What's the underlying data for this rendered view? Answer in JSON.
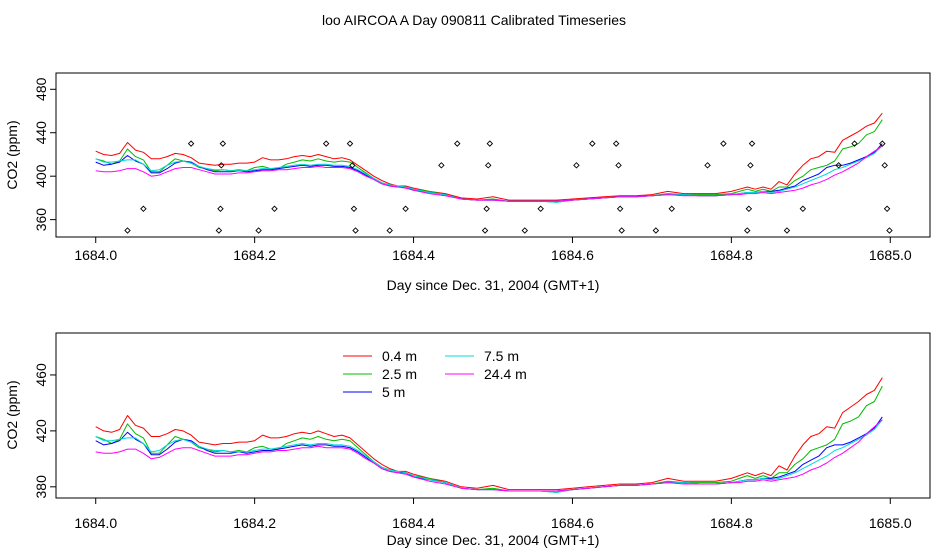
{
  "title": "loo AIRCOA A  Day 090811  Calibrated Timeseries",
  "colors": {
    "0.4 m": "#ff0000",
    "2.5 m": "#00bb00",
    "5 m": "#0000ff",
    "7.5 m": "#00d8d8",
    "24.4 m": "#ff00ff",
    "markers": "#000000"
  },
  "chart_data": [
    {
      "type": "line",
      "title": "",
      "xlabel": "Day since Dec. 31, 2004 (GMT+1)",
      "ylabel": "CO2 (ppm)",
      "xlim": [
        1683.95,
        1685.05
      ],
      "ylim": [
        344,
        495
      ],
      "xticks": [
        {
          "value": 1684.0,
          "label": "1684.0"
        },
        {
          "value": 1684.2,
          "label": "1684.2"
        },
        {
          "value": 1684.4,
          "label": "1684.4"
        },
        {
          "value": 1684.6,
          "label": "1684.6"
        },
        {
          "value": 1684.8,
          "label": "1684.8"
        },
        {
          "value": 1685.0,
          "label": "1685.0"
        }
      ],
      "yticks": [
        {
          "value": 360,
          "label": "360"
        },
        {
          "value": 400,
          "label": "400"
        },
        {
          "value": 440,
          "label": "440"
        },
        {
          "value": 480,
          "label": "480"
        }
      ],
      "legend": null,
      "series_source": "shared",
      "markers": {
        "shape": "diamond",
        "points": [
          [
            1684.04,
            350
          ],
          [
            1684.06,
            370
          ],
          [
            1684.12,
            430
          ],
          [
            1684.155,
            350
          ],
          [
            1684.157,
            370
          ],
          [
            1684.158,
            410
          ],
          [
            1684.16,
            430
          ],
          [
            1684.205,
            350
          ],
          [
            1684.225,
            370
          ],
          [
            1684.29,
            430
          ],
          [
            1684.32,
            430
          ],
          [
            1684.323,
            410
          ],
          [
            1684.325,
            370
          ],
          [
            1684.327,
            350
          ],
          [
            1684.37,
            350
          ],
          [
            1684.39,
            370
          ],
          [
            1684.435,
            410
          ],
          [
            1684.455,
            430
          ],
          [
            1684.49,
            350
          ],
          [
            1684.492,
            370
          ],
          [
            1684.494,
            410
          ],
          [
            1684.496,
            430
          ],
          [
            1684.54,
            350
          ],
          [
            1684.56,
            370
          ],
          [
            1684.605,
            410
          ],
          [
            1684.625,
            430
          ],
          [
            1684.655,
            430
          ],
          [
            1684.658,
            410
          ],
          [
            1684.66,
            370
          ],
          [
            1684.662,
            350
          ],
          [
            1684.705,
            350
          ],
          [
            1684.725,
            370
          ],
          [
            1684.77,
            410
          ],
          [
            1684.79,
            430
          ],
          [
            1684.82,
            350
          ],
          [
            1684.822,
            370
          ],
          [
            1684.824,
            410
          ],
          [
            1684.826,
            430
          ],
          [
            1684.87,
            350
          ],
          [
            1684.89,
            370
          ],
          [
            1684.935,
            410
          ],
          [
            1684.955,
            430
          ],
          [
            1684.99,
            430
          ],
          [
            1684.993,
            410
          ],
          [
            1684.996,
            370
          ],
          [
            1684.999,
            350
          ]
        ]
      }
    },
    {
      "type": "line",
      "title": "",
      "xlabel": "Day since Dec. 31, 2004 (GMT+1)",
      "ylabel": "CO2 (ppm)",
      "xlim": [
        1683.95,
        1685.05
      ],
      "ylim": [
        372,
        490
      ],
      "xticks": [
        {
          "value": 1684.0,
          "label": "1684.0"
        },
        {
          "value": 1684.2,
          "label": "1684.2"
        },
        {
          "value": 1684.4,
          "label": "1684.4"
        },
        {
          "value": 1684.6,
          "label": "1684.6"
        },
        {
          "value": 1684.8,
          "label": "1684.8"
        },
        {
          "value": 1685.0,
          "label": "1685.0"
        }
      ],
      "yticks": [
        {
          "value": 380,
          "label": "380"
        },
        {
          "value": 420,
          "label": "420"
        },
        {
          "value": 460,
          "label": "460"
        }
      ],
      "legend": {
        "placement": "top-left",
        "entries": [
          "0.4 m",
          "2.5 m",
          "5 m",
          "7.5 m",
          "24.4 m"
        ]
      },
      "series_source": "shared",
      "markers": null
    }
  ],
  "series": [
    {
      "name": "0.4 m",
      "color": "#ff0000",
      "x": [
        1684.0,
        1684.01,
        1684.02,
        1684.03,
        1684.04,
        1684.05,
        1684.06,
        1684.07,
        1684.08,
        1684.09,
        1684.1,
        1684.11,
        1684.12,
        1684.13,
        1684.14,
        1684.15,
        1684.16,
        1684.17,
        1684.18,
        1684.19,
        1684.2,
        1684.21,
        1684.22,
        1684.23,
        1684.24,
        1684.25,
        1684.26,
        1684.27,
        1684.28,
        1684.29,
        1684.3,
        1684.31,
        1684.32,
        1684.33,
        1684.34,
        1684.35,
        1684.36,
        1684.37,
        1684.38,
        1684.39,
        1684.4,
        1684.42,
        1684.44,
        1684.46,
        1684.48,
        1684.5,
        1684.52,
        1684.54,
        1684.56,
        1684.58,
        1684.6,
        1684.62,
        1684.64,
        1684.66,
        1684.68,
        1684.7,
        1684.72,
        1684.74,
        1684.76,
        1684.78,
        1684.8,
        1684.81,
        1684.82,
        1684.83,
        1684.84,
        1684.85,
        1684.86,
        1684.87,
        1684.88,
        1684.89,
        1684.9,
        1684.91,
        1684.92,
        1684.93,
        1684.94,
        1684.95,
        1684.96,
        1684.97,
        1684.98,
        1684.99
      ],
      "y": [
        423,
        420,
        419,
        421,
        431,
        424,
        422,
        416,
        416,
        418,
        421,
        420,
        417,
        412,
        411,
        410,
        411,
        411,
        412,
        412,
        413,
        417,
        415,
        415,
        416,
        418,
        419,
        418,
        420,
        418,
        416,
        417,
        415,
        410,
        405,
        400,
        396,
        393,
        391,
        391,
        389,
        386,
        384,
        380,
        379,
        381,
        378,
        378,
        378,
        378,
        379,
        380,
        381,
        382,
        382,
        383,
        386,
        384,
        384,
        384,
        386,
        388,
        390,
        388,
        390,
        388,
        395,
        392,
        402,
        410,
        416,
        418,
        423,
        422,
        433,
        437,
        441,
        446,
        449,
        458
      ]
    },
    {
      "name": "2.5 m",
      "color": "#00bb00",
      "x": [
        1684.0,
        1684.01,
        1684.02,
        1684.03,
        1684.04,
        1684.05,
        1684.06,
        1684.07,
        1684.08,
        1684.09,
        1684.1,
        1684.11,
        1684.12,
        1684.13,
        1684.14,
        1684.15,
        1684.16,
        1684.17,
        1684.18,
        1684.19,
        1684.2,
        1684.21,
        1684.22,
        1684.23,
        1684.24,
        1684.25,
        1684.26,
        1684.27,
        1684.28,
        1684.29,
        1684.3,
        1684.31,
        1684.32,
        1684.33,
        1684.34,
        1684.35,
        1684.36,
        1684.37,
        1684.38,
        1684.39,
        1684.4,
        1684.42,
        1684.44,
        1684.46,
        1684.48,
        1684.5,
        1684.52,
        1684.54,
        1684.56,
        1684.58,
        1684.6,
        1684.62,
        1684.64,
        1684.66,
        1684.68,
        1684.7,
        1684.72,
        1684.74,
        1684.76,
        1684.78,
        1684.8,
        1684.81,
        1684.82,
        1684.83,
        1684.84,
        1684.85,
        1684.86,
        1684.87,
        1684.88,
        1684.89,
        1684.9,
        1684.91,
        1684.92,
        1684.93,
        1684.94,
        1684.95,
        1684.96,
        1684.97,
        1684.98,
        1684.99
      ],
      "y": [
        416,
        414,
        411,
        414,
        425,
        418,
        415,
        404,
        404,
        410,
        416,
        414,
        412,
        408,
        407,
        405,
        406,
        405,
        406,
        405,
        408,
        409,
        407,
        407,
        411,
        413,
        415,
        414,
        416,
        414,
        413,
        414,
        413,
        408,
        403,
        398,
        394,
        392,
        391,
        390,
        388,
        386,
        383,
        379,
        378,
        379,
        377,
        377,
        377,
        376,
        378,
        379,
        380,
        381,
        381,
        382,
        384,
        383,
        383,
        383,
        384,
        386,
        388,
        386,
        388,
        386,
        390,
        390,
        396,
        400,
        406,
        408,
        410,
        414,
        425,
        427,
        430,
        438,
        441,
        452
      ]
    },
    {
      "name": "5 m",
      "color": "#0000ff",
      "x": [
        1684.0,
        1684.01,
        1684.02,
        1684.03,
        1684.04,
        1684.05,
        1684.06,
        1684.07,
        1684.08,
        1684.09,
        1684.1,
        1684.11,
        1684.12,
        1684.13,
        1684.14,
        1684.15,
        1684.16,
        1684.17,
        1684.18,
        1684.19,
        1684.2,
        1684.21,
        1684.22,
        1684.23,
        1684.24,
        1684.25,
        1684.26,
        1684.27,
        1684.28,
        1684.29,
        1684.3,
        1684.31,
        1684.32,
        1684.33,
        1684.34,
        1684.35,
        1684.36,
        1684.37,
        1684.38,
        1684.39,
        1684.4,
        1684.42,
        1684.44,
        1684.46,
        1684.48,
        1684.5,
        1684.52,
        1684.54,
        1684.56,
        1684.58,
        1684.6,
        1684.62,
        1684.64,
        1684.66,
        1684.68,
        1684.7,
        1684.72,
        1684.74,
        1684.76,
        1684.78,
        1684.8,
        1684.81,
        1684.82,
        1684.83,
        1684.84,
        1684.85,
        1684.86,
        1684.87,
        1684.88,
        1684.89,
        1684.9,
        1684.91,
        1684.92,
        1684.93,
        1684.94,
        1684.95,
        1684.96,
        1684.97,
        1684.98,
        1684.99
      ],
      "y": [
        413,
        410,
        411,
        413,
        419,
        414,
        411,
        403,
        403,
        407,
        412,
        414,
        413,
        409,
        406,
        404,
        404,
        404,
        405,
        404,
        405,
        406,
        406,
        407,
        408,
        409,
        410,
        409,
        410,
        410,
        409,
        409,
        408,
        405,
        401,
        397,
        393,
        391,
        390,
        390,
        387,
        385,
        383,
        379,
        378,
        378,
        377,
        377,
        377,
        377,
        378,
        379,
        380,
        381,
        381,
        382,
        383,
        383,
        382,
        382,
        383,
        384,
        385,
        385,
        386,
        386,
        387,
        389,
        391,
        396,
        399,
        402,
        408,
        410,
        410,
        412,
        415,
        418,
        422,
        430
      ]
    },
    {
      "name": "7.5 m",
      "color": "#00d8d8",
      "x": [
        1684.0,
        1684.01,
        1684.02,
        1684.03,
        1684.04,
        1684.05,
        1684.06,
        1684.07,
        1684.08,
        1684.09,
        1684.1,
        1684.11,
        1684.12,
        1684.13,
        1684.14,
        1684.15,
        1684.16,
        1684.17,
        1684.18,
        1684.19,
        1684.2,
        1684.21,
        1684.22,
        1684.23,
        1684.24,
        1684.25,
        1684.26,
        1684.27,
        1684.28,
        1684.29,
        1684.3,
        1684.31,
        1684.32,
        1684.33,
        1684.34,
        1684.35,
        1684.36,
        1684.37,
        1684.38,
        1684.39,
        1684.4,
        1684.42,
        1684.44,
        1684.46,
        1684.48,
        1684.5,
        1684.52,
        1684.54,
        1684.56,
        1684.58,
        1684.6,
        1684.62,
        1684.64,
        1684.66,
        1684.68,
        1684.7,
        1684.72,
        1684.74,
        1684.76,
        1684.78,
        1684.8,
        1684.81,
        1684.82,
        1684.83,
        1684.84,
        1684.85,
        1684.86,
        1684.87,
        1684.88,
        1684.89,
        1684.9,
        1684.91,
        1684.92,
        1684.93,
        1684.94,
        1684.95,
        1684.96,
        1684.97,
        1684.98,
        1684.99
      ],
      "y": [
        416,
        413,
        413,
        414,
        415,
        415,
        411,
        405,
        406,
        410,
        413,
        414,
        412,
        409,
        407,
        406,
        406,
        405,
        405,
        405,
        406,
        407,
        407,
        408,
        409,
        410,
        411,
        410,
        411,
        411,
        410,
        410,
        409,
        406,
        402,
        398,
        394,
        392,
        391,
        390,
        388,
        385,
        383,
        379,
        378,
        378,
        377,
        377,
        377,
        376,
        378,
        379,
        380,
        381,
        381,
        382,
        383,
        383,
        382,
        382,
        383,
        384,
        385,
        385,
        386,
        385,
        386,
        388,
        390,
        393,
        396,
        399,
        402,
        406,
        408,
        411,
        414,
        417,
        421,
        428
      ]
    },
    {
      "name": "24.4 m",
      "color": "#ff00ff",
      "x": [
        1684.0,
        1684.01,
        1684.02,
        1684.03,
        1684.04,
        1684.05,
        1684.06,
        1684.07,
        1684.08,
        1684.09,
        1684.1,
        1684.11,
        1684.12,
        1684.13,
        1684.14,
        1684.15,
        1684.16,
        1684.17,
        1684.18,
        1684.19,
        1684.2,
        1684.21,
        1684.22,
        1684.23,
        1684.24,
        1684.25,
        1684.26,
        1684.27,
        1684.28,
        1684.29,
        1684.3,
        1684.31,
        1684.32,
        1684.33,
        1684.34,
        1684.35,
        1684.36,
        1684.37,
        1684.38,
        1684.39,
        1684.4,
        1684.42,
        1684.44,
        1684.46,
        1684.48,
        1684.5,
        1684.52,
        1684.54,
        1684.56,
        1684.58,
        1684.6,
        1684.62,
        1684.64,
        1684.66,
        1684.68,
        1684.7,
        1684.72,
        1684.74,
        1684.76,
        1684.78,
        1684.8,
        1684.81,
        1684.82,
        1684.83,
        1684.84,
        1684.85,
        1684.86,
        1684.87,
        1684.88,
        1684.89,
        1684.9,
        1684.91,
        1684.92,
        1684.93,
        1684.94,
        1684.95,
        1684.96,
        1684.97,
        1684.98,
        1684.99
      ],
      "y": [
        405,
        404,
        404,
        405,
        407,
        407,
        404,
        400,
        401,
        404,
        407,
        408,
        408,
        406,
        404,
        402,
        402,
        402,
        403,
        403,
        404,
        405,
        405,
        406,
        406,
        407,
        408,
        408,
        409,
        408,
        408,
        408,
        407,
        404,
        400,
        397,
        393,
        391,
        390,
        389,
        387,
        384,
        382,
        379,
        378,
        378,
        377,
        377,
        377,
        377,
        378,
        379,
        380,
        381,
        381,
        382,
        383,
        382,
        382,
        382,
        383,
        383,
        384,
        384,
        385,
        384,
        385,
        386,
        387,
        389,
        392,
        394,
        397,
        401,
        404,
        408,
        412,
        418,
        423,
        428
      ]
    }
  ]
}
